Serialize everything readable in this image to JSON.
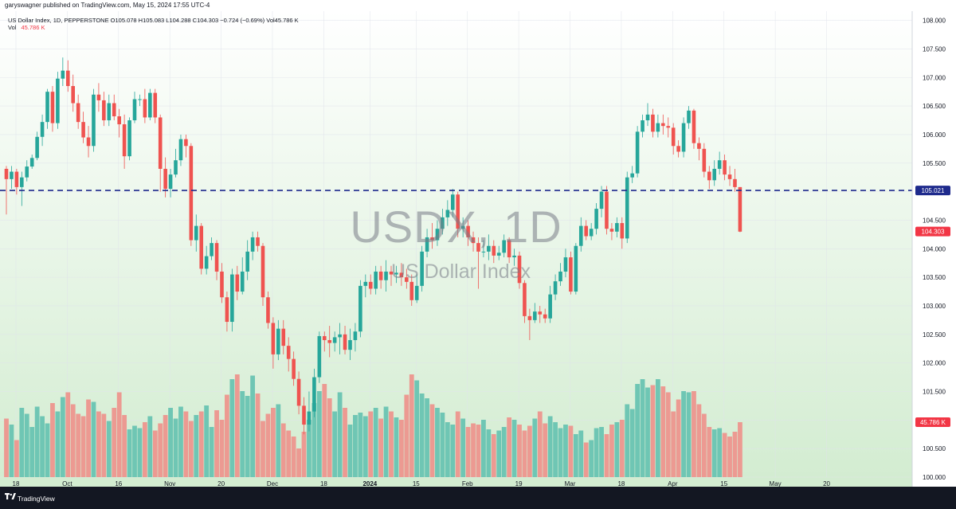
{
  "header": {
    "publisher": "garyswagner published on TradingView.com, May 15, 2024 17:55 UTC-4"
  },
  "legend": {
    "line1": "US Dollar Index, 1D, PEPPERSTONE  O105.078  H105.083  L104.288  C104.303  −0.724 (−0.69%)  Vol45.786 K",
    "vol_label": "Vol",
    "vol_value": "45.786 K"
  },
  "watermark": {
    "symbol": "USDX, 1D",
    "name": "US Dollar Index"
  },
  "footer": {
    "brand": "TradingView"
  },
  "colors": {
    "up": "#26a69a",
    "down": "#ef5350",
    "vol_up": "#6fc6b4",
    "vol_down": "#ec9a92",
    "hline": "#1e2a8c",
    "price_tag_line": "#1e2a8c",
    "price_tag_last": "#f23645",
    "vol_tag": "#f23645"
  },
  "chart_data": {
    "type": "candlestick",
    "symbol": "US Dollar Index",
    "timeframe": "1D",
    "ylim": [
      100.0,
      108.05
    ],
    "y_ticks": [
      "108.000",
      "107.500",
      "107.000",
      "106.500",
      "106.000",
      "105.500",
      "105.000",
      "104.500",
      "104.000",
      "103.500",
      "103.000",
      "102.500",
      "102.000",
      "101.500",
      "101.000",
      "100.500",
      "100.000"
    ],
    "x_tick_labels": [
      "18",
      "Oct",
      "16",
      "Nov",
      "20",
      "Dec",
      "18",
      "2024",
      "15",
      "Feb",
      "19",
      "Mar",
      "18",
      "Apr",
      "15",
      "May",
      "20"
    ],
    "x_tick_index": [
      0,
      10,
      20,
      30,
      40,
      50,
      60,
      69,
      78,
      88,
      98,
      108,
      118,
      128,
      138,
      148,
      158
    ],
    "horizontal_line": {
      "value": 105.021,
      "label": "105.021"
    },
    "last_price": {
      "value": 104.303,
      "label": "104.303"
    },
    "volume_last": {
      "label": "45.786 K"
    },
    "candles": [
      [
        105.4,
        105.22,
        105.45,
        104.6,
        0.49
      ],
      [
        105.22,
        105.35,
        105.45,
        105.05,
        0.44
      ],
      [
        105.35,
        105.08,
        105.4,
        104.95,
        0.31
      ],
      [
        105.08,
        105.25,
        105.35,
        104.75,
        0.58
      ],
      [
        105.25,
        105.44,
        105.55,
        105.18,
        0.53
      ],
      [
        105.44,
        105.59,
        105.65,
        105.4,
        0.42
      ],
      [
        105.59,
        105.96,
        106.05,
        105.55,
        0.59
      ],
      [
        105.96,
        106.22,
        106.35,
        105.8,
        0.51
      ],
      [
        106.22,
        106.75,
        106.8,
        106.1,
        0.45
      ],
      [
        106.75,
        106.2,
        106.85,
        106.05,
        0.62
      ],
      [
        106.2,
        106.98,
        107.1,
        106.1,
        0.55
      ],
      [
        106.98,
        107.12,
        107.35,
        106.85,
        0.67
      ],
      [
        107.12,
        106.85,
        107.3,
        106.75,
        0.71
      ],
      [
        106.85,
        106.55,
        107.05,
        106.4,
        0.61
      ],
      [
        106.55,
        106.22,
        106.7,
        106.1,
        0.53
      ],
      [
        106.22,
        105.95,
        106.4,
        105.85,
        0.51
      ],
      [
        105.95,
        105.8,
        106.15,
        105.6,
        0.65
      ],
      [
        105.8,
        106.7,
        106.8,
        105.7,
        0.63
      ],
      [
        106.7,
        106.6,
        106.9,
        106.4,
        0.55
      ],
      [
        106.6,
        106.25,
        106.75,
        106.15,
        0.53
      ],
      [
        106.25,
        106.55,
        106.7,
        106.15,
        0.47
      ],
      [
        106.55,
        106.32,
        106.7,
        106.25,
        0.58
      ],
      [
        106.32,
        106.18,
        106.45,
        105.95,
        0.71
      ],
      [
        106.18,
        105.62,
        106.35,
        105.4,
        0.52
      ],
      [
        105.62,
        106.25,
        106.3,
        105.55,
        0.4
      ],
      [
        106.25,
        106.62,
        106.75,
        106.2,
        0.43
      ],
      [
        106.62,
        106.62,
        106.7,
        106.5,
        0.41
      ],
      [
        106.62,
        106.3,
        106.8,
        106.2,
        0.46
      ],
      [
        106.3,
        106.73,
        106.8,
        106.25,
        0.51
      ],
      [
        106.73,
        106.3,
        106.8,
        106.2,
        0.39
      ],
      [
        106.3,
        105.4,
        106.35,
        105.0,
        0.45
      ],
      [
        105.4,
        105.05,
        105.6,
        104.9,
        0.52
      ],
      [
        105.05,
        105.3,
        105.4,
        104.9,
        0.58
      ],
      [
        105.3,
        105.55,
        105.75,
        105.25,
        0.49
      ],
      [
        105.55,
        105.92,
        106.0,
        105.45,
        0.59
      ],
      [
        105.92,
        105.8,
        106.0,
        105.6,
        0.55
      ],
      [
        105.8,
        104.15,
        105.85,
        104.05,
        0.47
      ],
      [
        104.15,
        104.4,
        104.6,
        103.95,
        0.52
      ],
      [
        104.4,
        103.65,
        104.45,
        103.55,
        0.55
      ],
      [
        103.65,
        103.87,
        104.05,
        103.55,
        0.6
      ],
      [
        103.87,
        104.1,
        104.2,
        103.8,
        0.42
      ],
      [
        104.1,
        103.6,
        104.15,
        103.45,
        0.56
      ],
      [
        103.6,
        103.15,
        103.75,
        103.05,
        0.48
      ],
      [
        103.15,
        102.72,
        103.25,
        102.55,
        0.69
      ],
      [
        102.72,
        103.55,
        103.65,
        102.55,
        0.82
      ],
      [
        103.55,
        103.25,
        103.7,
        103.1,
        0.86
      ],
      [
        103.25,
        103.6,
        103.85,
        103.2,
        0.72
      ],
      [
        103.6,
        103.95,
        104.15,
        103.45,
        0.68
      ],
      [
        103.95,
        104.2,
        104.3,
        103.8,
        0.85
      ],
      [
        104.2,
        104.05,
        104.3,
        103.95,
        0.7
      ],
      [
        104.05,
        103.15,
        104.1,
        103.0,
        0.47
      ],
      [
        103.15,
        102.7,
        103.25,
        102.6,
        0.53
      ],
      [
        102.7,
        102.15,
        102.8,
        101.9,
        0.58
      ],
      [
        102.15,
        102.6,
        102.75,
        102.05,
        0.61
      ],
      [
        102.6,
        102.3,
        102.75,
        102.15,
        0.45
      ],
      [
        102.3,
        102.07,
        102.45,
        101.85,
        0.39
      ],
      [
        102.07,
        101.72,
        102.2,
        101.6,
        0.34
      ],
      [
        101.72,
        101.25,
        101.85,
        101.1,
        0.24
      ],
      [
        101.25,
        100.92,
        101.4,
        100.75,
        0.38
      ],
      [
        100.92,
        101.15,
        101.5,
        100.8,
        0.48
      ],
      [
        101.15,
        101.75,
        101.9,
        101.05,
        0.62
      ],
      [
        101.75,
        102.47,
        102.55,
        101.65,
        0.72
      ],
      [
        102.47,
        102.4,
        102.55,
        102.2,
        0.78
      ],
      [
        102.4,
        102.35,
        102.65,
        102.1,
        0.66
      ],
      [
        102.35,
        102.45,
        102.55,
        102.2,
        0.55
      ],
      [
        102.45,
        102.5,
        102.7,
        102.15,
        0.71
      ],
      [
        102.5,
        102.23,
        102.65,
        102.15,
        0.58
      ],
      [
        102.23,
        102.4,
        102.6,
        102.05,
        0.44
      ],
      [
        102.4,
        102.55,
        102.7,
        102.2,
        0.52
      ],
      [
        102.55,
        103.35,
        103.45,
        102.45,
        0.54
      ],
      [
        103.35,
        103.42,
        103.55,
        103.15,
        0.51
      ],
      [
        103.42,
        103.3,
        103.55,
        103.2,
        0.55
      ],
      [
        103.3,
        103.6,
        103.7,
        103.2,
        0.58
      ],
      [
        103.6,
        103.45,
        103.7,
        103.3,
        0.49
      ],
      [
        103.45,
        103.6,
        103.8,
        103.25,
        0.59
      ],
      [
        103.6,
        103.55,
        103.7,
        103.35,
        0.55
      ],
      [
        103.55,
        103.58,
        103.7,
        103.4,
        0.5
      ],
      [
        103.58,
        103.5,
        103.75,
        103.35,
        0.48
      ],
      [
        103.5,
        103.42,
        103.65,
        103.3,
        0.69
      ],
      [
        103.42,
        103.1,
        103.55,
        103.0,
        0.86
      ],
      [
        103.1,
        103.35,
        103.55,
        103.05,
        0.81
      ],
      [
        103.35,
        103.95,
        104.05,
        103.25,
        0.7
      ],
      [
        103.95,
        104.2,
        104.35,
        103.85,
        0.66
      ],
      [
        104.2,
        104.15,
        104.45,
        104.0,
        0.61
      ],
      [
        104.15,
        104.35,
        104.5,
        104.05,
        0.58
      ],
      [
        104.35,
        104.55,
        104.7,
        104.25,
        0.54
      ],
      [
        104.55,
        104.68,
        104.85,
        104.4,
        0.46
      ],
      [
        104.68,
        104.95,
        105.05,
        104.55,
        0.44
      ],
      [
        104.95,
        104.35,
        105.0,
        104.2,
        0.55
      ],
      [
        104.35,
        104.4,
        104.55,
        104.2,
        0.49
      ],
      [
        104.4,
        104.2,
        104.5,
        104.05,
        0.42
      ],
      [
        104.2,
        104.1,
        104.3,
        103.95,
        0.45
      ],
      [
        104.1,
        103.95,
        104.2,
        103.3,
        0.44
      ],
      [
        103.95,
        103.95,
        104.15,
        103.85,
        0.48
      ],
      [
        103.95,
        104.05,
        104.25,
        103.8,
        0.4
      ],
      [
        104.05,
        103.88,
        104.15,
        103.75,
        0.36
      ],
      [
        103.88,
        103.93,
        104.05,
        103.8,
        0.39
      ],
      [
        103.93,
        104.15,
        104.25,
        103.85,
        0.42
      ],
      [
        104.15,
        103.85,
        104.2,
        103.75,
        0.5
      ],
      [
        103.85,
        103.88,
        104.0,
        103.7,
        0.48
      ],
      [
        103.88,
        103.4,
        103.95,
        103.3,
        0.44
      ],
      [
        103.4,
        102.82,
        103.45,
        102.7,
        0.39
      ],
      [
        102.82,
        102.75,
        102.95,
        102.4,
        0.43
      ],
      [
        102.75,
        102.9,
        103.05,
        102.7,
        0.49
      ],
      [
        102.9,
        102.85,
        103.0,
        102.7,
        0.55
      ],
      [
        102.85,
        102.78,
        102.95,
        102.7,
        0.45
      ],
      [
        102.78,
        103.2,
        103.35,
        102.7,
        0.51
      ],
      [
        103.2,
        103.43,
        103.55,
        103.1,
        0.46
      ],
      [
        103.43,
        103.6,
        103.75,
        103.35,
        0.41
      ],
      [
        103.6,
        103.85,
        104.0,
        103.5,
        0.44
      ],
      [
        103.85,
        103.25,
        103.95,
        103.2,
        0.43
      ],
      [
        103.25,
        104.05,
        104.1,
        103.2,
        0.36
      ],
      [
        104.05,
        104.4,
        104.55,
        103.95,
        0.39
      ],
      [
        104.4,
        104.22,
        104.5,
        104.15,
        0.29
      ],
      [
        104.22,
        104.35,
        104.45,
        104.15,
        0.31
      ],
      [
        104.35,
        104.7,
        104.8,
        104.25,
        0.41
      ],
      [
        104.7,
        105.0,
        105.1,
        104.55,
        0.42
      ],
      [
        105.0,
        104.35,
        105.1,
        104.25,
        0.36
      ],
      [
        104.35,
        104.3,
        104.45,
        104.15,
        0.44
      ],
      [
        104.3,
        104.45,
        104.55,
        104.2,
        0.46
      ],
      [
        104.45,
        104.18,
        104.55,
        104.0,
        0.48
      ],
      [
        104.18,
        105.25,
        105.35,
        104.1,
        0.61
      ],
      [
        105.25,
        105.32,
        105.45,
        105.15,
        0.57
      ],
      [
        105.32,
        106.05,
        106.15,
        105.25,
        0.78
      ],
      [
        106.05,
        106.25,
        106.35,
        105.95,
        0.82
      ],
      [
        106.25,
        106.35,
        106.55,
        106.15,
        0.75
      ],
      [
        106.35,
        106.05,
        106.45,
        105.95,
        0.77
      ],
      [
        106.05,
        106.2,
        106.35,
        105.95,
        0.82
      ],
      [
        106.2,
        106.15,
        106.35,
        106.0,
        0.76
      ],
      [
        106.15,
        106.12,
        106.3,
        105.95,
        0.71
      ],
      [
        106.12,
        105.8,
        106.2,
        105.65,
        0.55
      ],
      [
        105.8,
        105.7,
        105.9,
        105.6,
        0.65
      ],
      [
        105.7,
        106.2,
        106.3,
        105.6,
        0.72
      ],
      [
        106.2,
        106.42,
        106.5,
        106.1,
        0.71
      ],
      [
        106.42,
        105.85,
        106.45,
        105.75,
        0.72
      ],
      [
        105.85,
        105.75,
        105.95,
        105.55,
        0.61
      ],
      [
        105.75,
        105.35,
        105.85,
        105.25,
        0.53
      ],
      [
        105.35,
        105.2,
        105.45,
        105.05,
        0.42
      ],
      [
        105.2,
        105.4,
        105.55,
        105.1,
        0.4
      ],
      [
        105.4,
        105.55,
        105.7,
        105.3,
        0.41
      ],
      [
        105.55,
        105.3,
        105.65,
        105.2,
        0.37
      ],
      [
        105.3,
        105.22,
        105.45,
        105.1,
        0.34
      ],
      [
        105.22,
        105.08,
        105.4,
        105.0,
        0.38
      ],
      [
        105.08,
        104.3,
        105.08,
        104.29,
        0.46
      ]
    ]
  }
}
